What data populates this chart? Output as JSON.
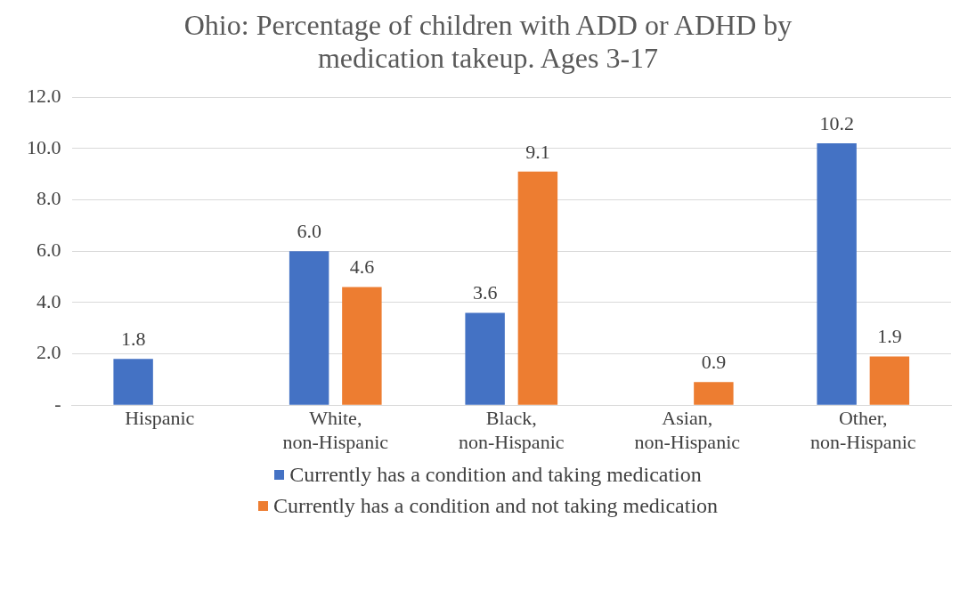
{
  "chart_data": {
    "type": "bar",
    "title": "Ohio: Percentage of children with ADD or ADHD by medication takeup. Ages 3-17",
    "categories": [
      "Hispanic",
      "White, non-Hispanic",
      "Black, non-Hispanic",
      "Asian, non-Hispanic",
      "Other, non-Hispanic"
    ],
    "series": [
      {
        "name": "Currently has a condition and taking medication",
        "color": "#4472c4",
        "values": [
          1.8,
          6.0,
          3.6,
          null,
          10.2
        ],
        "value_labels": [
          "1.8",
          "6.0",
          "3.6",
          null,
          "10.2"
        ]
      },
      {
        "name": "Currently has a condition and not taking medication",
        "color": "#ed7d31",
        "values": [
          null,
          4.6,
          9.1,
          0.9,
          1.9
        ],
        "value_labels": [
          null,
          "4.6",
          "9.1",
          "0.9",
          "1.9"
        ]
      }
    ],
    "ylim": [
      0,
      12
    ],
    "yticks": [
      {
        "value": 0,
        "label": "-"
      },
      {
        "value": 2,
        "label": "2.0"
      },
      {
        "value": 4,
        "label": "4.0"
      },
      {
        "value": 6,
        "label": "6.0"
      },
      {
        "value": 8,
        "label": "8.0"
      },
      {
        "value": 10,
        "label": "10.0"
      },
      {
        "value": 12,
        "label": "12.0"
      }
    ],
    "grid": "y",
    "legend": "bottom"
  }
}
